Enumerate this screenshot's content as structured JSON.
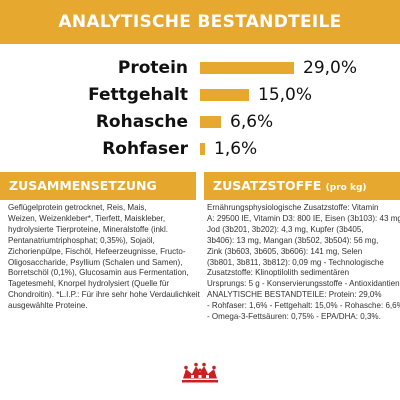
{
  "header": {
    "title": "ANALYTISCHE BESTANDTEILE"
  },
  "nutrients": [
    {
      "label": "Protein",
      "value": "29,0%",
      "percent": 29.0
    },
    {
      "label": "Fettgehalt",
      "value": "15,0%",
      "percent": 15.0
    },
    {
      "label": "Rohasche",
      "value": "6,6%",
      "percent": 6.6
    },
    {
      "label": "Rohfaser",
      "value": "1,6%",
      "percent": 1.6
    }
  ],
  "composition": {
    "title": "ZUSAMMENSETZUNG",
    "body": "Geflügelprotein getrocknet, Reis, Mais,\nWeizen, Weizenkleber*, Tierfett, Maiskleber,\nhydrolysierte Tierproteine, Mineralstoffe (inkl.\nPentanatriumtriphosphat; 0,35%), Sojaöl,\nZichorienpülpe, Fischöl, Hefeerzeugnisse, Fructo-\nOligosaccharide, Psyllium (Schalen und Samen),\nBorretschöl (0,1%), Glucosamin aus Fermentation,\nTagetesmehl, Knorpel hydrolysiert (Quelle für\nChondroitin). *L.I.P.: Für ihre sehr hohe Verdaulichkeit\nausgewählte Proteine."
  },
  "additives": {
    "title": "ZUSATZSTOFFE",
    "title_suffix": "(pro kg)",
    "body": "Ernährungsphysiologische Zusatzstoffe: Vitamin\nA: 29500 IE, Vitamin D3: 800 IE, Eisen (3b103): 43 mg,\nJod (3b201, 3b202): 4,3 mg, Kupfer (3b405,\n3b406): 13 mg, Mangan (3b502, 3b504): 56 mg,\nZink (3b603, 3b605, 3b606): 141 mg, Selen\n(3b801, 3b811, 3b812): 0,09 mg - Technologische\nZusatzstoffe: Klinoptilolith sedimentären\nUrsprungs: 5 g - Konservierungsstoffe - Antioxidantien.\nANALYTISCHE BESTANDTEILE: Protein: 29,0%\n- Rohfaser: 1,6% - Fettgehalt: 15,0% - Rohasche: 6,6%\n- Omega-3-Fettsäuren: 0,75% - EPA/DHA: 0,3%."
  },
  "colors": {
    "accent": "#e7a82f",
    "logo": "#cc1f1f",
    "text": "#111111",
    "body_text": "#333333"
  },
  "logo": {
    "icon": "crown-logo-icon"
  }
}
